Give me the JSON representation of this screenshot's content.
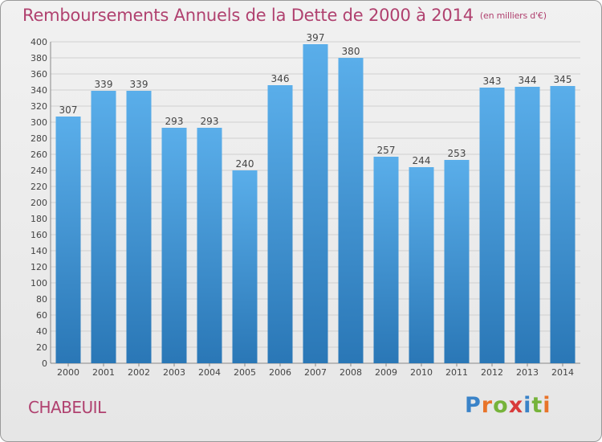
{
  "title": "Remboursements Annuels de la Dette de 2000 à 2014",
  "unit": "(en milliers d'€)",
  "commune": "CHABEUIL",
  "logo": {
    "letters": [
      "P",
      "r",
      "o",
      "x",
      "i",
      "t",
      "i"
    ],
    "colors": [
      "#3a83c8",
      "#e8742a",
      "#76b33a",
      "#d83a3a",
      "#3a83c8",
      "#76b33a",
      "#e8742a"
    ]
  },
  "colors": {
    "bar_top": "#5aaeea",
    "bar_bottom": "#2a77b6",
    "title": "#b0416f",
    "grid": "#d0d0d0"
  },
  "chart_data": {
    "type": "bar",
    "title": "Remboursements Annuels de la Dette de 2000 à 2014",
    "categories": [
      "2000",
      "2001",
      "2002",
      "2003",
      "2004",
      "2005",
      "2006",
      "2007",
      "2008",
      "2009",
      "2010",
      "2011",
      "2012",
      "2013",
      "2014"
    ],
    "values": [
      307,
      339,
      339,
      293,
      293,
      240,
      346,
      397,
      380,
      257,
      244,
      253,
      343,
      344,
      345
    ],
    "ylim": [
      0,
      400
    ],
    "yticks": [
      0,
      20,
      40,
      60,
      80,
      100,
      120,
      140,
      160,
      180,
      200,
      220,
      240,
      260,
      280,
      300,
      320,
      340,
      360,
      380,
      400
    ],
    "grid": true,
    "xlabel": "",
    "ylabel": ""
  }
}
